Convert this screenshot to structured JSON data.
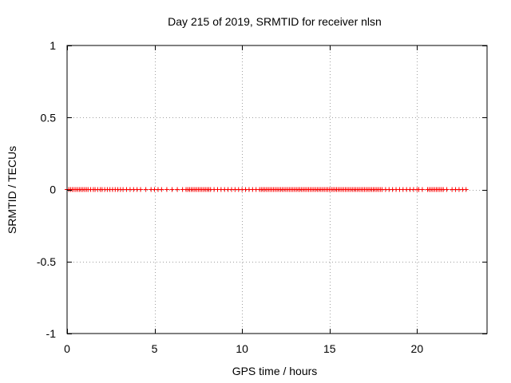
{
  "chart_data": {
    "type": "scatter",
    "title": "Day 215 of 2019, SRMTID for receiver nlsn",
    "xlabel": "GPS time / hours",
    "ylabel": "SRMTID / TECUs",
    "xlim": [
      0,
      24
    ],
    "ylim": [
      -1,
      1
    ],
    "x_ticks": [
      0,
      5,
      10,
      15,
      20
    ],
    "x_tick_labels": [
      "0",
      "5",
      "10",
      "15",
      "20"
    ],
    "y_ticks": [
      -1,
      -0.5,
      0,
      0.5,
      1
    ],
    "y_tick_labels": [
      "-1",
      "-0.5",
      "0",
      "0.5",
      "1"
    ],
    "grid": true,
    "marker": "plus",
    "series": [
      {
        "color": "#ff0000",
        "x": [
          0.0,
          0.1,
          0.2,
          0.3,
          0.4,
          0.5,
          0.6,
          0.7,
          0.8,
          0.9,
          1.0,
          1.1,
          1.2,
          1.35,
          1.5,
          1.6,
          1.75,
          1.9,
          2.0,
          2.15,
          2.3,
          2.45,
          2.6,
          2.75,
          2.9,
          3.05,
          3.2,
          3.4,
          3.6,
          3.8,
          4.0,
          4.2,
          4.5,
          4.8,
          5.0,
          5.2,
          5.4,
          5.7,
          6.0,
          6.3,
          6.6,
          6.8,
          6.9,
          7.0,
          7.1,
          7.2,
          7.3,
          7.4,
          7.5,
          7.6,
          7.7,
          7.8,
          7.9,
          8.0,
          8.1,
          8.2,
          8.4,
          8.6,
          8.8,
          9.0,
          9.2,
          9.4,
          9.6,
          9.8,
          10.0,
          10.2,
          10.4,
          10.6,
          10.8,
          11.0,
          11.1,
          11.2,
          11.3,
          11.4,
          11.5,
          11.6,
          11.7,
          11.8,
          11.9,
          12.0,
          12.1,
          12.2,
          12.3,
          12.4,
          12.5,
          12.6,
          12.7,
          12.8,
          12.9,
          13.0,
          13.1,
          13.2,
          13.3,
          13.4,
          13.5,
          13.6,
          13.7,
          13.8,
          13.9,
          14.0,
          14.1,
          14.2,
          14.3,
          14.4,
          14.5,
          14.6,
          14.7,
          14.8,
          14.9,
          15.0,
          15.1,
          15.2,
          15.3,
          15.4,
          15.5,
          15.6,
          15.7,
          15.8,
          15.9,
          16.0,
          16.1,
          16.2,
          16.3,
          16.4,
          16.5,
          16.6,
          16.7,
          16.8,
          16.9,
          17.0,
          17.1,
          17.2,
          17.3,
          17.4,
          17.5,
          17.6,
          17.7,
          17.8,
          17.9,
          18.0,
          18.2,
          18.4,
          18.6,
          18.8,
          19.0,
          19.2,
          19.4,
          19.6,
          19.8,
          20.0,
          20.1,
          20.3,
          20.6,
          20.7,
          20.8,
          20.9,
          21.0,
          21.1,
          21.2,
          21.3,
          21.4,
          21.5,
          21.7,
          22.0,
          22.2,
          22.4,
          22.6,
          22.8
        ],
        "y": [
          0,
          0,
          0,
          0,
          0,
          0,
          0,
          0,
          0,
          0,
          0,
          0,
          0,
          0,
          0,
          0,
          0,
          0,
          0,
          0,
          0,
          0,
          0,
          0,
          0,
          0,
          0,
          0,
          0,
          0,
          0,
          0,
          0,
          0,
          0,
          0,
          0,
          0,
          0,
          0,
          0,
          0,
          0,
          0,
          0,
          0,
          0,
          0,
          0,
          0,
          0,
          0,
          0,
          0,
          0,
          0,
          0,
          0,
          0,
          0,
          0,
          0,
          0,
          0,
          0,
          0,
          0,
          0,
          0,
          0,
          0,
          0,
          0,
          0,
          0,
          0,
          0,
          0,
          0,
          0,
          0,
          0,
          0,
          0,
          0,
          0,
          0,
          0,
          0,
          0,
          0,
          0,
          0,
          0,
          0,
          0,
          0,
          0,
          0,
          0,
          0,
          0,
          0,
          0,
          0,
          0,
          0,
          0,
          0,
          0,
          0,
          0,
          0,
          0,
          0,
          0,
          0,
          0,
          0,
          0,
          0,
          0,
          0,
          0,
          0,
          0,
          0,
          0,
          0,
          0,
          0,
          0,
          0,
          0,
          0,
          0,
          0,
          0,
          0,
          0,
          0,
          0,
          0,
          0,
          0,
          0,
          0,
          0,
          0,
          0,
          0,
          0,
          0,
          0,
          0,
          0,
          0,
          0,
          0,
          0,
          0,
          0,
          0,
          0,
          0,
          0,
          0,
          0
        ]
      }
    ]
  }
}
